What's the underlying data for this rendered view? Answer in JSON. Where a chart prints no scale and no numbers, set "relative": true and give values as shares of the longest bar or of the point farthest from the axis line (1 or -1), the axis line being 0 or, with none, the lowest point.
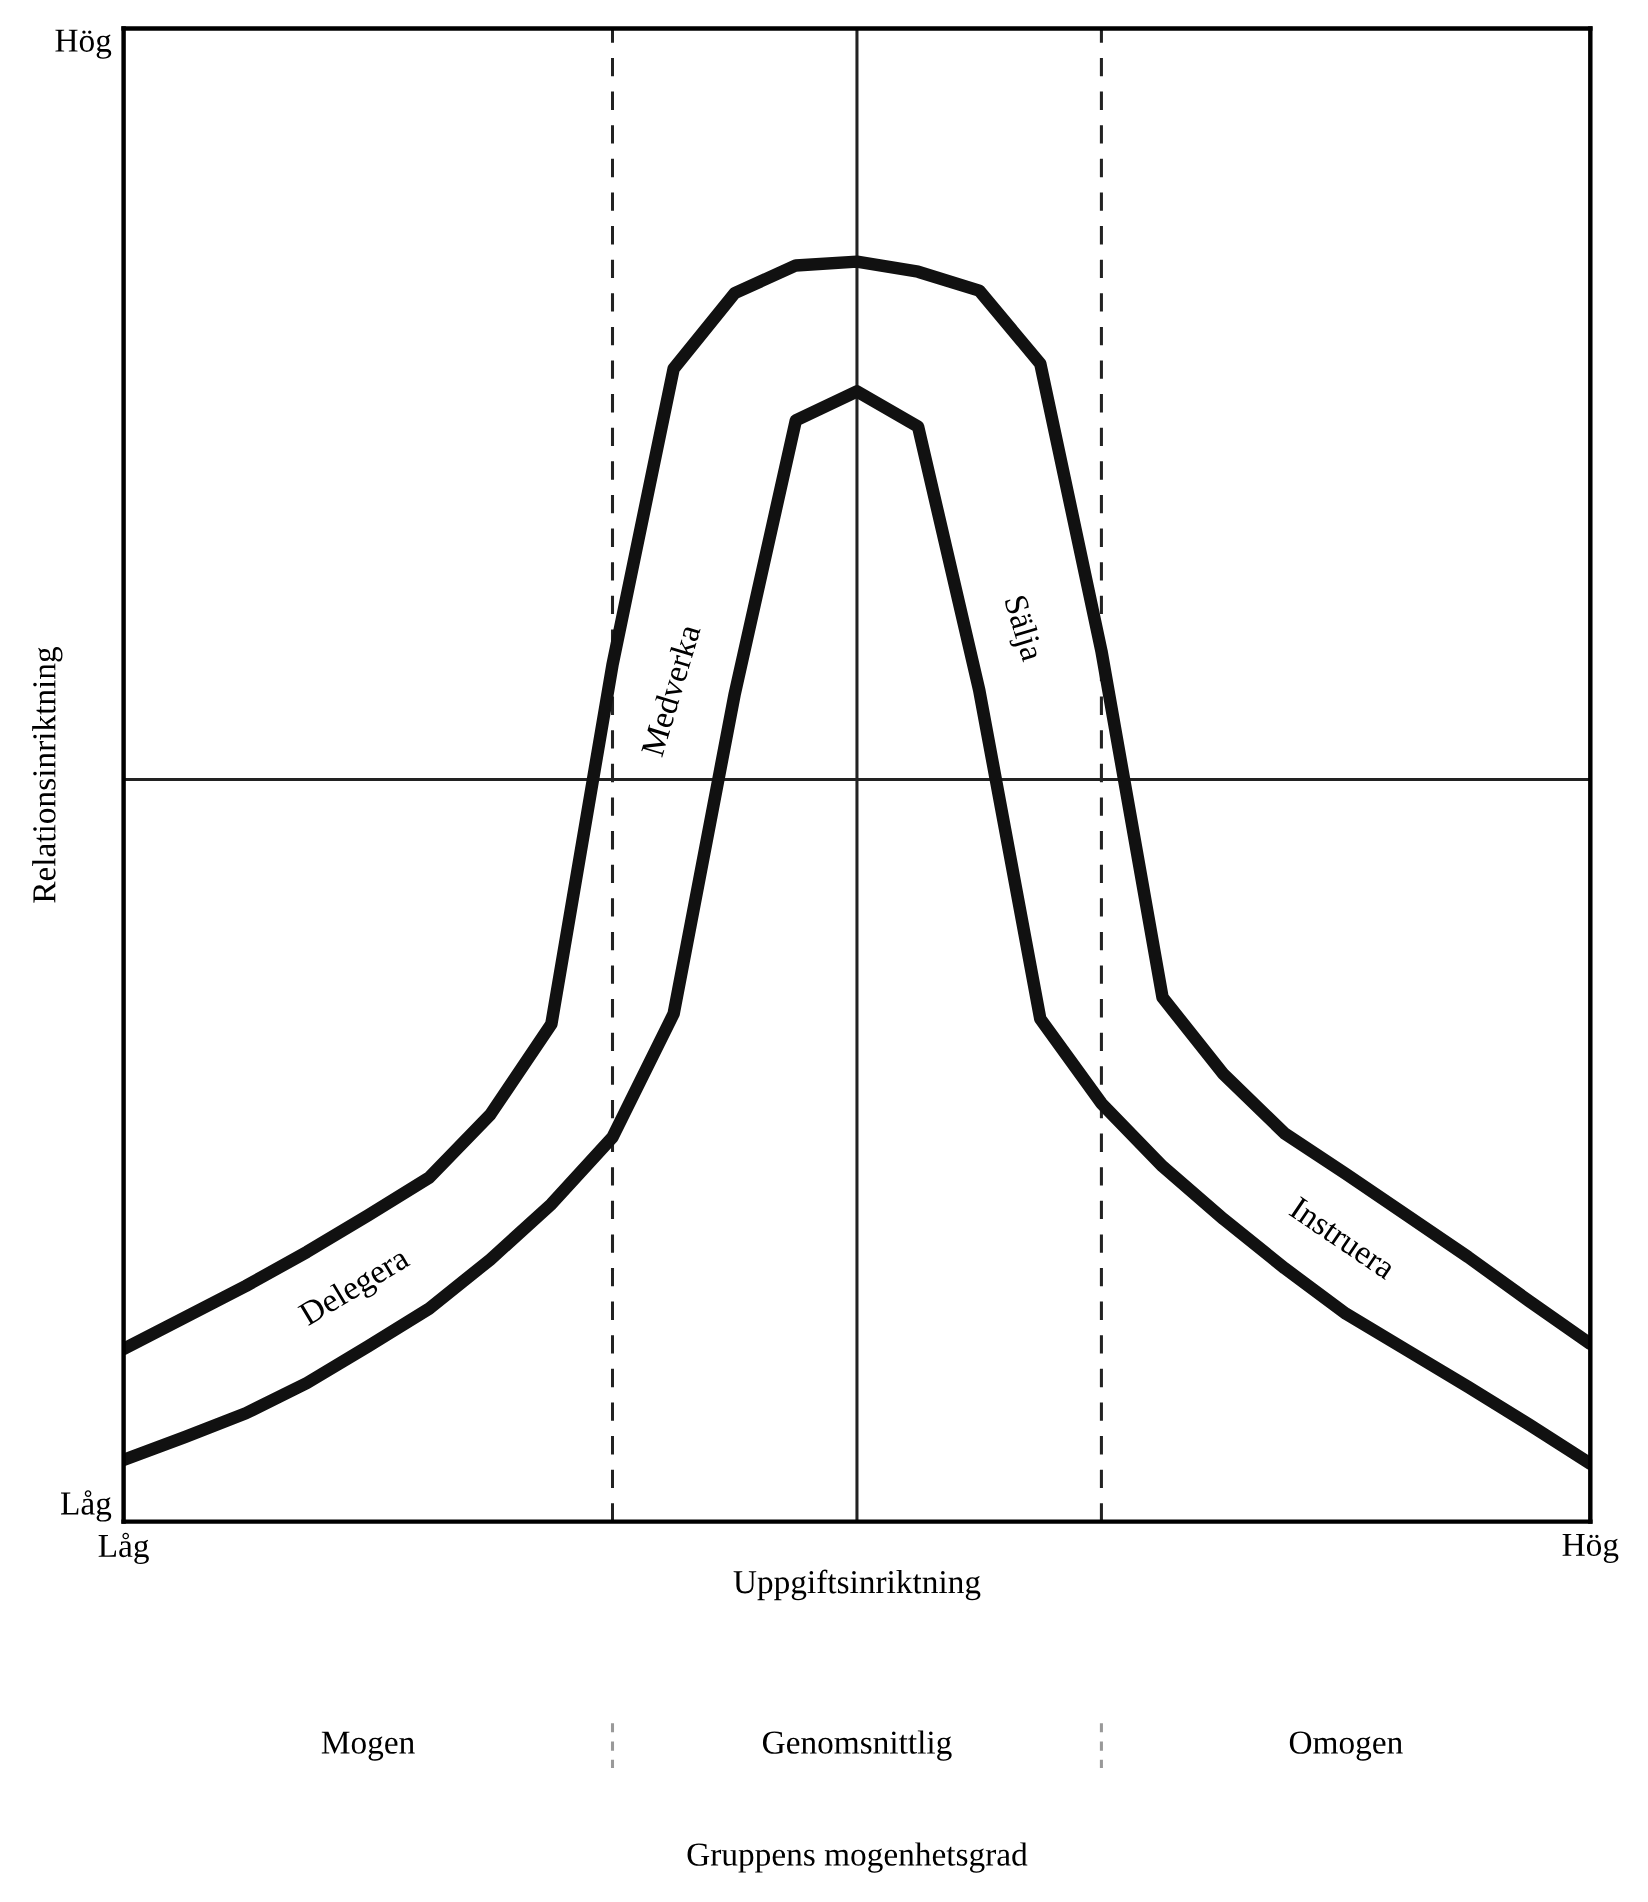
{
  "chart_data": {
    "type": "line",
    "relative": true,
    "xlabel": "Uppgiftsinriktning",
    "ylabel": "Relationsinriktning",
    "categories": [
      "Låg",
      null,
      null,
      null,
      null,
      null,
      null,
      null,
      null,
      null,
      null,
      null,
      null,
      null,
      null,
      null,
      null,
      null,
      null,
      null,
      null,
      null,
      null,
      null,
      "Hög"
    ],
    "marker": "none",
    "line_style": "solid",
    "series": [
      {
        "color": "#111111",
        "values": [
          0.137,
          0.162,
          0.187,
          0.214,
          0.243,
          0.273,
          0.323,
          0.395,
          0.68,
          0.915,
          0.975,
          0.997,
          1,
          0.992,
          0.977,
          0.919,
          0.691,
          0.416,
          0.355,
          0.308,
          0.276,
          0.243,
          0.21,
          0.175,
          0.141
        ]
      },
      {
        "color": "#111111",
        "values": [
          0.049,
          0.067,
          0.086,
          0.11,
          0.139,
          0.169,
          0.208,
          0.252,
          0.305,
          0.403,
          0.657,
          0.874,
          0.897,
          0.869,
          0.66,
          0.399,
          0.332,
          0.282,
          0.24,
          0.201,
          0.165,
          0.136,
          0.107,
          0.077,
          0.046
        ]
      }
    ],
    "ref_lines": [
      {
        "axis": "y",
        "value": 0.589,
        "line_style": "solid",
        "color": "#222222"
      }
    ],
    "annotations": [
      "Hög",
      "Låg",
      "Delegera",
      "Medverka",
      "Sälja",
      "Instruera",
      "Mogen",
      "Genomsnittlig",
      "Omogen",
      "Gruppens mogenhetsgrad"
    ]
  }
}
